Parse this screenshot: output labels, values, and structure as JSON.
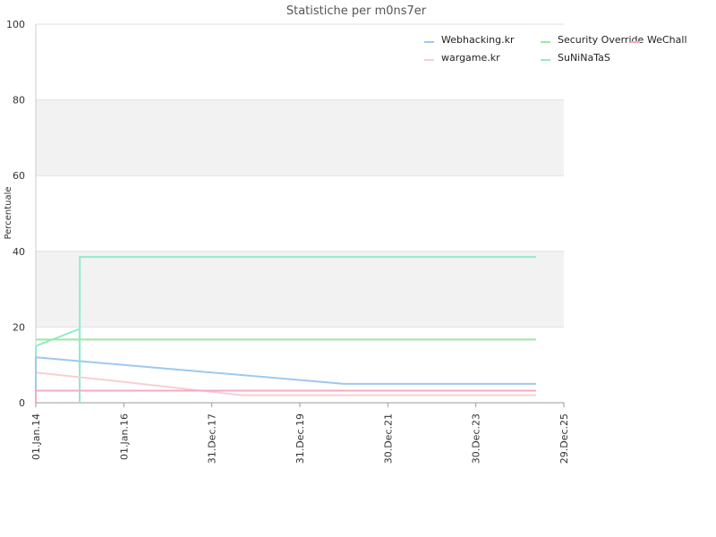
{
  "chart_data": {
    "type": "line",
    "title": "Statistiche per m0ns7er",
    "xlabel": "",
    "ylabel": "Percentuale",
    "ylim": [
      0,
      100
    ],
    "yticks": [
      0,
      20,
      40,
      60,
      80,
      100
    ],
    "x_ticks": [
      {
        "date": "2014-01-01",
        "label": "01.Jan.14"
      },
      {
        "date": "2016-01-01",
        "label": "01.Jan.16"
      },
      {
        "date": "2017-12-31",
        "label": "31.Dec.17"
      },
      {
        "date": "2019-12-31",
        "label": "31.Dec.19"
      },
      {
        "date": "2021-12-30",
        "label": "30.Dec.21"
      },
      {
        "date": "2023-12-30",
        "label": "30.Dec.23"
      },
      {
        "date": "2025-12-29",
        "label": "29.Dec.25"
      }
    ],
    "xlim": [
      "2014-01-01",
      "2025-12-29"
    ],
    "grid": true,
    "legend_position": "top-right",
    "series": [
      {
        "name": "Webhacking.kr",
        "color": "#9ec9ee",
        "points": [
          [
            "2014-01-01",
            0
          ],
          [
            "2014-01-02",
            12
          ],
          [
            "2014-12-30",
            11
          ],
          [
            "2016-01-01",
            10
          ],
          [
            "2017-12-31",
            8
          ],
          [
            "2019-12-31",
            6
          ],
          [
            "2021-01-01",
            5
          ],
          [
            "2025-05-12",
            5
          ]
        ]
      },
      {
        "name": "Security Override",
        "color": "#9ee6a0",
        "points": [
          [
            "2014-01-01",
            16.7
          ],
          [
            "2025-05-12",
            16.7
          ]
        ]
      },
      {
        "name": "WeChall",
        "color": "#f7a8c4",
        "points": [
          [
            "2014-01-01",
            0
          ],
          [
            "2014-01-02",
            3.2
          ],
          [
            "2025-05-12",
            3.2
          ]
        ]
      },
      {
        "name": "wargame.kr",
        "color": "#f8cfd2",
        "points": [
          [
            "2014-01-01",
            8
          ],
          [
            "2016-01-01",
            5.5
          ],
          [
            "2018-09-01",
            2
          ],
          [
            "2025-05-12",
            2
          ]
        ]
      },
      {
        "name": "SuNiNaTaS",
        "color": "#90ecc9",
        "points": [
          [
            "2014-01-01",
            0
          ],
          [
            "2014-01-02",
            15
          ],
          [
            "2014-12-30",
            19.5
          ],
          [
            "2014-12-31",
            0
          ],
          [
            "2015-01-01",
            38.5
          ],
          [
            "2025-05-12",
            38.5
          ]
        ]
      }
    ]
  }
}
